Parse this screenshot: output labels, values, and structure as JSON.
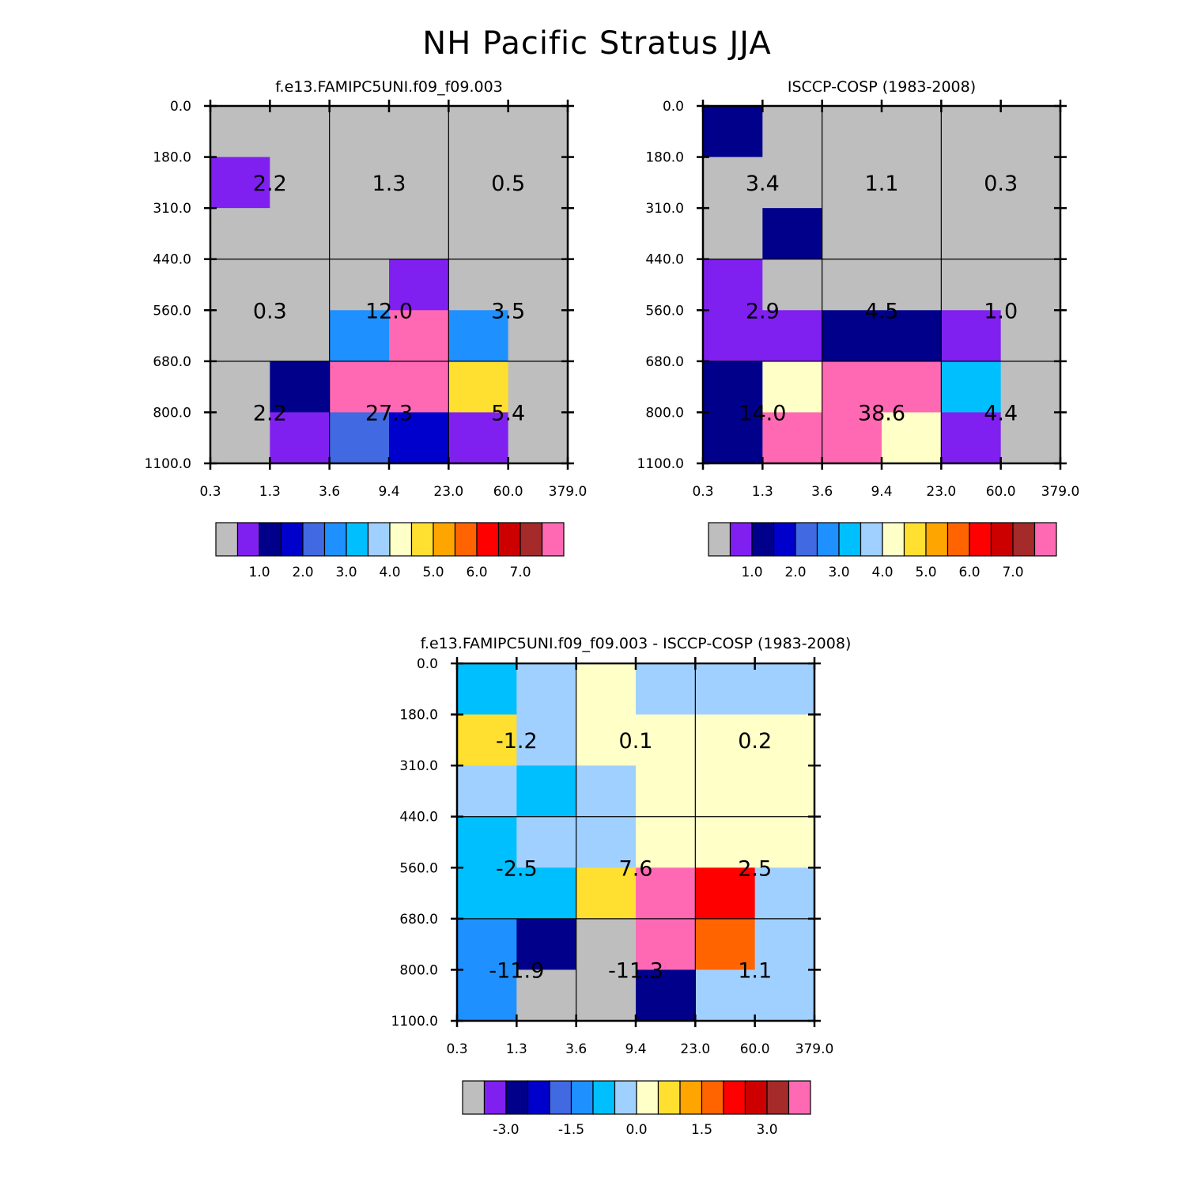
{
  "title": "NH Pacific Stratus JJA",
  "colors": {
    "abs": [
      "#bebebe",
      "#8020f0",
      "#00008b",
      "#0000cd",
      "#4169e1",
      "#1e90ff",
      "#00bfff",
      "#a0d0ff",
      "#ffffc8",
      "#ffe030",
      "#ffa500",
      "#ff6400",
      "#ff0000",
      "#cd0000",
      "#a52a2a",
      "#ff69b4"
    ],
    "diff": [
      "#bebebe",
      "#8020f0",
      "#00008b",
      "#0000cd",
      "#4169e1",
      "#1e90ff",
      "#00bfff",
      "#a0d0ff",
      "#ffffc8",
      "#ffe030",
      "#ffa500",
      "#ff6400",
      "#ff0000",
      "#cd0000",
      "#a52a2a",
      "#ff69b4"
    ]
  },
  "chart_data": [
    {
      "type": "heatmap",
      "title": "f.e13.FAMIPC5UNI.f09_f09.003",
      "x_ticks": [
        "0.3",
        "1.3",
        "3.6",
        "9.4",
        "23.0",
        "60.0",
        "379.0"
      ],
      "y_ticks": [
        "0.0",
        "180.0",
        "310.0",
        "440.0",
        "560.0",
        "680.0",
        "800.0",
        "1100.0"
      ],
      "cell_color_index": [
        [
          0,
          0,
          0,
          0,
          0,
          0
        ],
        [
          1,
          0,
          0,
          0,
          0,
          0
        ],
        [
          0,
          0,
          0,
          0,
          0,
          0
        ],
        [
          0,
          0,
          0,
          1,
          0,
          0
        ],
        [
          0,
          0,
          5,
          15,
          5,
          0
        ],
        [
          0,
          2,
          15,
          15,
          9,
          0
        ],
        [
          0,
          1,
          4,
          3,
          1,
          0
        ]
      ],
      "cell_labels": [
        {
          "text": "2.2",
          "x": 1,
          "y": 1.5
        },
        {
          "text": "1.3",
          "x": 3,
          "y": 1.5
        },
        {
          "text": "0.5",
          "x": 5,
          "y": 1.5
        },
        {
          "text": "0.3",
          "x": 1,
          "y": 4
        },
        {
          "text": "12.0",
          "x": 3,
          "y": 4
        },
        {
          "text": "3.5",
          "x": 5,
          "y": 4
        },
        {
          "text": "2.2",
          "x": 1,
          "y": 6
        },
        {
          "text": "27.3",
          "x": 3,
          "y": 6
        },
        {
          "text": "5.4",
          "x": 5,
          "y": 6
        }
      ],
      "colorbar": {
        "labels": [
          "1.0",
          "2.0",
          "3.0",
          "4.0",
          "5.0",
          "6.0",
          "7.0"
        ]
      }
    },
    {
      "type": "heatmap",
      "title": "ISCCP-COSP (1983-2008)",
      "x_ticks": [
        "0.3",
        "1.3",
        "3.6",
        "9.4",
        "23.0",
        "60.0",
        "379.0"
      ],
      "y_ticks": [
        "0.0",
        "180.0",
        "310.0",
        "440.0",
        "560.0",
        "680.0",
        "800.0",
        "1100.0"
      ],
      "cell_color_index": [
        [
          2,
          0,
          0,
          0,
          0,
          0
        ],
        [
          0,
          0,
          0,
          0,
          0,
          0
        ],
        [
          0,
          2,
          0,
          0,
          0,
          0
        ],
        [
          1,
          0,
          0,
          0,
          0,
          0
        ],
        [
          1,
          1,
          2,
          2,
          1,
          0
        ],
        [
          2,
          8,
          15,
          15,
          6,
          0
        ],
        [
          2,
          15,
          15,
          8,
          1,
          0
        ]
      ],
      "cell_labels": [
        {
          "text": "3.4",
          "x": 1,
          "y": 1.5
        },
        {
          "text": "1.1",
          "x": 3,
          "y": 1.5
        },
        {
          "text": "0.3",
          "x": 5,
          "y": 1.5
        },
        {
          "text": "2.9",
          "x": 1,
          "y": 4
        },
        {
          "text": "4.5",
          "x": 3,
          "y": 4
        },
        {
          "text": "1.0",
          "x": 5,
          "y": 4
        },
        {
          "text": "14.0",
          "x": 1,
          "y": 6
        },
        {
          "text": "38.6",
          "x": 3,
          "y": 6
        },
        {
          "text": "4.4",
          "x": 5,
          "y": 6
        }
      ],
      "colorbar": {
        "labels": [
          "1.0",
          "2.0",
          "3.0",
          "4.0",
          "5.0",
          "6.0",
          "7.0"
        ]
      }
    },
    {
      "type": "heatmap",
      "title": "f.e13.FAMIPC5UNI.f09_f09.003 - ISCCP-COSP (1983-2008)",
      "x_ticks": [
        "0.3",
        "1.3",
        "3.6",
        "9.4",
        "23.0",
        "60.0",
        "379.0"
      ],
      "y_ticks": [
        "0.0",
        "180.0",
        "310.0",
        "440.0",
        "560.0",
        "680.0",
        "800.0",
        "1100.0"
      ],
      "cell_color_index": [
        [
          6,
          7,
          8,
          7,
          7,
          7
        ],
        [
          9,
          7,
          8,
          8,
          8,
          8
        ],
        [
          7,
          6,
          7,
          8,
          8,
          8
        ],
        [
          6,
          7,
          7,
          8,
          8,
          8
        ],
        [
          6,
          6,
          9,
          15,
          12,
          7
        ],
        [
          5,
          2,
          0,
          15,
          11,
          7
        ],
        [
          5,
          0,
          0,
          2,
          7,
          7
        ]
      ],
      "cell_labels": [
        {
          "text": "-1.2",
          "x": 1,
          "y": 1.5
        },
        {
          "text": "0.1",
          "x": 3,
          "y": 1.5
        },
        {
          "text": "0.2",
          "x": 5,
          "y": 1.5
        },
        {
          "text": "-2.5",
          "x": 1,
          "y": 4
        },
        {
          "text": "7.6",
          "x": 3,
          "y": 4
        },
        {
          "text": "2.5",
          "x": 5,
          "y": 4
        },
        {
          "text": "-11.9",
          "x": 1,
          "y": 6
        },
        {
          "text": "-11.3",
          "x": 3,
          "y": 6
        },
        {
          "text": "1.1",
          "x": 5,
          "y": 6
        }
      ],
      "colorbar": {
        "labels": [
          "-3.0",
          "-1.5",
          "0.0",
          "1.5",
          "3.0"
        ]
      }
    }
  ]
}
